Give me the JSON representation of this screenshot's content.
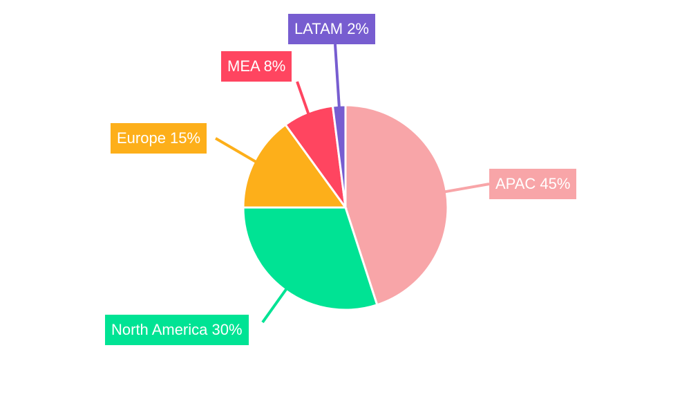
{
  "chart_data": {
    "type": "pie",
    "title": "",
    "categories": [
      "APAC",
      "North America",
      "Europe",
      "MEA",
      "LATAM"
    ],
    "values": [
      45,
      30,
      15,
      8,
      2
    ],
    "unit": "%",
    "colors": [
      "#f8a5a8",
      "#00e394",
      "#fdaf1a",
      "#ff4560",
      "#775dd0"
    ],
    "start_angle": "12 o'clock",
    "direction": "clockwise",
    "legend": "none (outside callout labels)"
  },
  "labels": [
    {
      "name": "APAC",
      "text": "APAC 45%"
    },
    {
      "name": "North America",
      "text": "North America 30%"
    },
    {
      "name": "Europe",
      "text": "Europe 15%"
    },
    {
      "name": "MEA",
      "text": "MEA 8%"
    },
    {
      "name": "LATAM",
      "text": "LATAM 2%"
    }
  ]
}
